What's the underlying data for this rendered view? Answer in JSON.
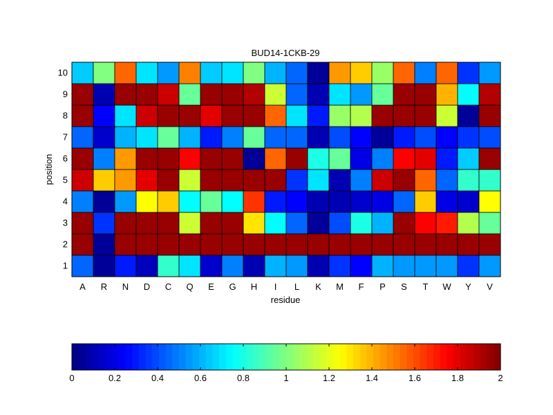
{
  "chart_data": {
    "type": "heatmap",
    "title": "BUD14-1CKB-29",
    "xlabel": "residue",
    "ylabel": "position",
    "x_categories": [
      "A",
      "R",
      "N",
      "D",
      "C",
      "Q",
      "E",
      "G",
      "H",
      "I",
      "L",
      "K",
      "M",
      "F",
      "P",
      "S",
      "T",
      "W",
      "Y",
      "V"
    ],
    "y_categories": [
      "1",
      "2",
      "3",
      "4",
      "5",
      "6",
      "7",
      "8",
      "9",
      "10"
    ],
    "clim": [
      0,
      2
    ],
    "colormap": "jet",
    "colorbar": {
      "placement": "bottom",
      "ticks": [
        0,
        0.2,
        0.4,
        0.6,
        0.8,
        1,
        1.2,
        1.4,
        1.6,
        1.8,
        2
      ],
      "tick_labels": [
        "0",
        "0.2",
        "0.4",
        "0.6",
        "0.8",
        "1",
        "1.2",
        "1.4",
        "1.6",
        "1.8",
        "2"
      ]
    },
    "values_note": "rows ordered position 1 to 10; columns follow x_categories",
    "values": [
      [
        0.45,
        0.05,
        0.3,
        0.12,
        0.85,
        0.7,
        0.15,
        0.5,
        0.1,
        0.6,
        0.55,
        0.1,
        0.35,
        0.25,
        0.6,
        0.55,
        0.55,
        0.55,
        0.35,
        0.55
      ],
      [
        1.95,
        0.05,
        1.95,
        1.95,
        1.95,
        1.95,
        1.95,
        1.95,
        1.95,
        1.95,
        1.95,
        1.95,
        1.95,
        1.95,
        1.95,
        1.95,
        1.95,
        1.95,
        1.95,
        1.95
      ],
      [
        1.95,
        0.35,
        1.95,
        1.95,
        1.95,
        1.15,
        1.95,
        1.95,
        1.3,
        0.75,
        0.45,
        0.05,
        0.4,
        0.8,
        0.6,
        1.95,
        1.75,
        1.7,
        1.1,
        0.95
      ],
      [
        0.5,
        0.05,
        0.55,
        1.25,
        1.35,
        0.75,
        0.95,
        0.75,
        1.65,
        0.3,
        0.25,
        0.1,
        0.1,
        0.15,
        0.2,
        0.45,
        1.35,
        0.2,
        0.15,
        1.25
      ],
      [
        1.85,
        1.35,
        1.45,
        1.8,
        1.95,
        1.15,
        1.95,
        1.95,
        1.95,
        1.95,
        0.35,
        0.7,
        0.1,
        0.5,
        1.85,
        1.95,
        1.55,
        0.45,
        0.85,
        0.85
      ],
      [
        1.95,
        0.5,
        1.45,
        1.95,
        1.95,
        1.75,
        1.95,
        1.95,
        0.05,
        1.55,
        1.95,
        0.8,
        0.95,
        0.2,
        0.5,
        1.75,
        1.8,
        0.3,
        0.65,
        1.95
      ],
      [
        0.45,
        0.15,
        0.6,
        0.7,
        0.95,
        0.6,
        0.3,
        0.5,
        0.95,
        0.45,
        0.45,
        0.1,
        0.4,
        0.25,
        0.05,
        0.3,
        0.4,
        0.25,
        0.35,
        0.4
      ],
      [
        1.95,
        0.25,
        0.7,
        1.85,
        1.95,
        1.95,
        1.8,
        1.95,
        1.95,
        1.55,
        0.7,
        0.3,
        1.05,
        1.1,
        1.95,
        1.95,
        1.95,
        1.15,
        0.05,
        1.95
      ],
      [
        1.95,
        0.1,
        1.95,
        1.95,
        1.85,
        0.95,
        1.95,
        1.95,
        1.9,
        1.15,
        0.45,
        0.1,
        0.7,
        0.55,
        0.95,
        1.95,
        1.95,
        1.4,
        0.75,
        1.9
      ],
      [
        0.65,
        1.0,
        1.55,
        0.7,
        0.55,
        1.5,
        0.65,
        0.7,
        1.0,
        0.6,
        0.45,
        0.05,
        1.45,
        1.35,
        1.05,
        1.55,
        0.5,
        1.55,
        0.35,
        0.55
      ]
    ]
  }
}
